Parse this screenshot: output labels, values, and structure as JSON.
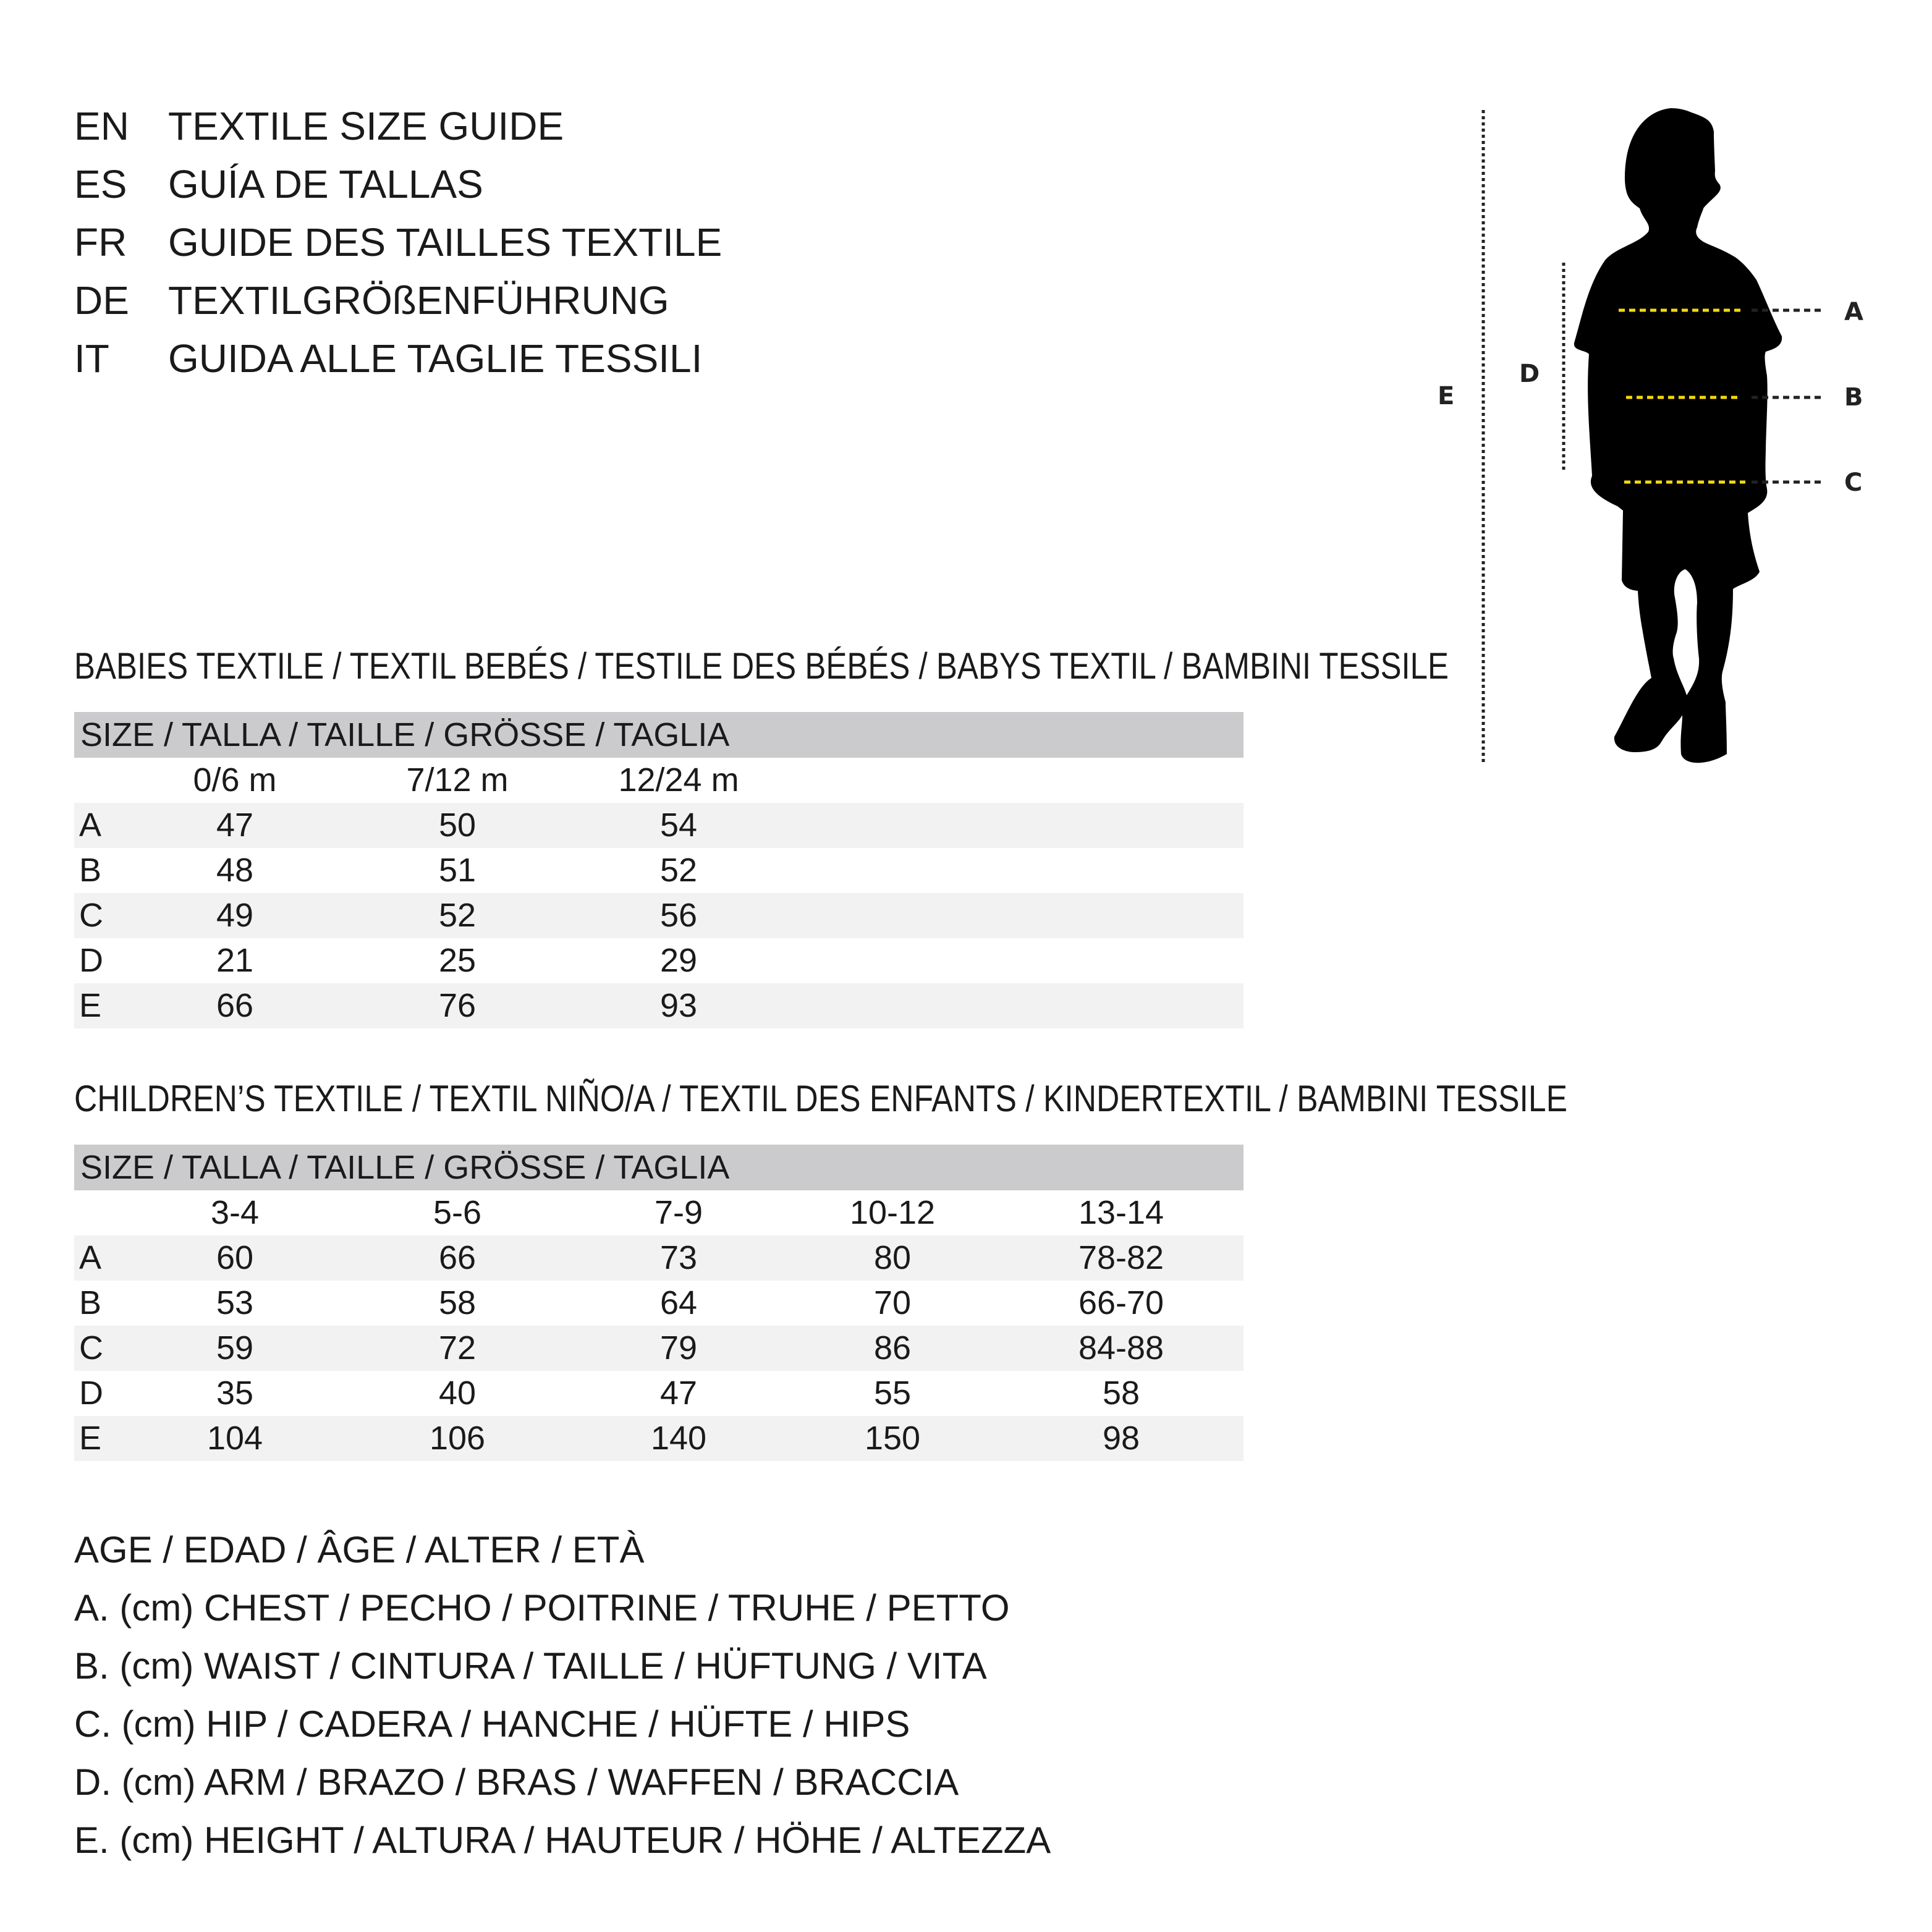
{
  "titles": [
    {
      "code": "EN",
      "text": "TEXTILE SIZE GUIDE"
    },
    {
      "code": "ES",
      "text": "GUÍA DE TALLAS"
    },
    {
      "code": "FR",
      "text": "GUIDE DES TAILLES TEXTILE"
    },
    {
      "code": "DE",
      "text": "TEXTILGRÖßENFÜHRUNG"
    },
    {
      "code": "IT",
      "text": "GUIDA ALLE TAGLIE TESSILI"
    }
  ],
  "figure": {
    "labels": {
      "a": "A",
      "b": "B",
      "c": "C",
      "d": "D",
      "e": "E"
    },
    "colors": {
      "silhouette": "#000000",
      "measure_line": "#f5d90a",
      "guide_line": "#222222"
    }
  },
  "tables": [
    {
      "heading": "BABIES TEXTILE / TEXTIL BEBÉS / TESTILE DES BÉBÉS / BABYS TEXTIL / BAMBINI TESSILE",
      "size_header": "SIZE / TALLA / TAILLE / GRÖSSE / TAGLIA",
      "columns": [
        "0/6 m",
        "7/12 m",
        "12/24 m"
      ],
      "rows": [
        {
          "label": "A",
          "values": [
            "47",
            "50",
            "54"
          ]
        },
        {
          "label": "B",
          "values": [
            "48",
            "51",
            "52"
          ]
        },
        {
          "label": "C",
          "values": [
            "49",
            "52",
            "56"
          ]
        },
        {
          "label": "D",
          "values": [
            "21",
            "25",
            "29"
          ]
        },
        {
          "label": "E",
          "values": [
            "66",
            "76",
            "93"
          ]
        }
      ]
    },
    {
      "heading": "CHILDREN’S TEXTILE / TEXTIL NIÑO/A / TEXTIL DES ENFANTS / KINDERTEXTIL / BAMBINI TESSILE",
      "size_header": "SIZE / TALLA / TAILLE / GRÖSSE / TAGLIA",
      "columns": [
        "3-4",
        "5-6",
        "7-9",
        "10-12",
        "13-14"
      ],
      "rows": [
        {
          "label": "A",
          "values": [
            "60",
            "66",
            "73",
            "80",
            "78-82"
          ]
        },
        {
          "label": "B",
          "values": [
            "53",
            "58",
            "64",
            "70",
            "66-70"
          ]
        },
        {
          "label": "C",
          "values": [
            "59",
            "72",
            "79",
            "86",
            "84-88"
          ]
        },
        {
          "label": "D",
          "values": [
            "35",
            "40",
            "47",
            "55",
            "58"
          ]
        },
        {
          "label": "E",
          "values": [
            "104",
            "106",
            "140",
            "150",
            "98"
          ]
        }
      ]
    }
  ],
  "legend": [
    "AGE / EDAD / ÂGE / ALTER / ETÀ",
    "A. (cm) CHEST / PECHO / POITRINE / TRUHE / PETTO",
    "B. (cm) WAIST / CINTURA / TAILLE / HÜFTUNG / VITA",
    "C. (cm) HIP / CADERA / HANCHE / HÜFTE / HIPS",
    "D. (cm) ARM / BRAZO / BRAS / WAFFEN / BRACCIA",
    "E. (cm) HEIGHT / ALTURA / HAUTEUR / HÖHE / ALTEZZA"
  ]
}
